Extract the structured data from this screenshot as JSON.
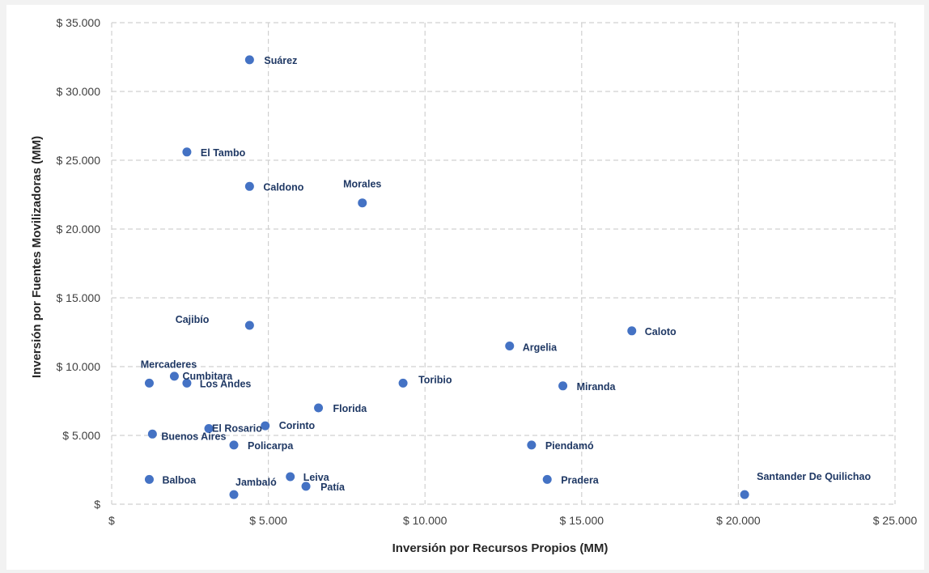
{
  "chart_data": {
    "type": "scatter",
    "title": "",
    "xlabel": "Inversión por Recursos Propios (MM)",
    "ylabel": "Inversión por Fuentes Movilizadoras (MM)",
    "xlim": [
      0,
      25000
    ],
    "ylim": [
      0,
      35000
    ],
    "x_ticks": [
      0,
      5000,
      10000,
      15000,
      20000,
      25000
    ],
    "y_ticks": [
      0,
      5000,
      10000,
      15000,
      20000,
      25000,
      30000,
      35000
    ],
    "x_tick_labels": [
      "$",
      "$ 5.000",
      "$ 10.000",
      "$ 15.000",
      "$ 20.000",
      "$ 25.000"
    ],
    "y_tick_labels": [
      "$",
      "$ 5.000",
      "$ 10.000",
      "$ 15.000",
      "$ 20.000",
      "$ 25.000",
      "$ 30.000",
      "$ 35.000"
    ],
    "grid": true,
    "legend": "none",
    "marker_color": "#4472c4",
    "label_color": "#1f3864",
    "points": [
      {
        "label": "Suárez",
        "x": 4400,
        "y": 32300
      },
      {
        "label": "El Tambo",
        "x": 2400,
        "y": 25600
      },
      {
        "label": "Caldono",
        "x": 4400,
        "y": 23100
      },
      {
        "label": "Morales",
        "x": 8000,
        "y": 21900
      },
      {
        "label": "Cajibío",
        "x": 4400,
        "y": 13000
      },
      {
        "label": "Caloto",
        "x": 16600,
        "y": 12600
      },
      {
        "label": "Argelia",
        "x": 12700,
        "y": 11500
      },
      {
        "label": "Mercaderes",
        "x": 1200,
        "y": 8800
      },
      {
        "label": "Cumbitara",
        "x": 2000,
        "y": 9300
      },
      {
        "label": "Los Andes",
        "x": 2400,
        "y": 8800
      },
      {
        "label": "Toribio",
        "x": 9300,
        "y": 8800
      },
      {
        "label": "Miranda",
        "x": 14400,
        "y": 8600
      },
      {
        "label": "Florida",
        "x": 6600,
        "y": 7000
      },
      {
        "label": "Corinto",
        "x": 4900,
        "y": 5700
      },
      {
        "label": "El Rosario",
        "x": 3100,
        "y": 5500
      },
      {
        "label": "Buenos Aires",
        "x": 1300,
        "y": 5100
      },
      {
        "label": "Policarpa",
        "x": 3900,
        "y": 4300
      },
      {
        "label": "Piendamó",
        "x": 13400,
        "y": 4300
      },
      {
        "label": "Balboa",
        "x": 1200,
        "y": 1800
      },
      {
        "label": "Leiva",
        "x": 5700,
        "y": 2000
      },
      {
        "label": "Patía",
        "x": 6200,
        "y": 1300
      },
      {
        "label": "Jambaló",
        "x": 3900,
        "y": 700
      },
      {
        "label": "Pradera",
        "x": 13900,
        "y": 1800
      },
      {
        "label": "Santander De Quilichao",
        "x": 20200,
        "y": 700
      }
    ]
  }
}
